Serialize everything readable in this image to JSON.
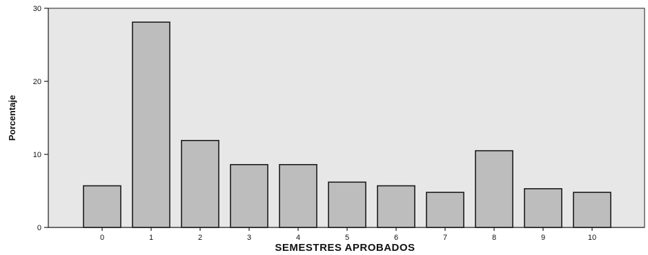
{
  "chart_data": {
    "type": "bar",
    "categories": [
      "0",
      "1",
      "2",
      "3",
      "4",
      "5",
      "6",
      "7",
      "8",
      "9",
      "10"
    ],
    "values": [
      5.7,
      28.1,
      11.9,
      8.6,
      8.6,
      6.2,
      5.7,
      4.8,
      10.5,
      5.3,
      4.8
    ],
    "title": "",
    "xlabel": "SEMESTRES APROBADOS",
    "ylabel": "Porcentaje",
    "ylim": [
      0,
      30
    ],
    "yticks": [
      0,
      10,
      20,
      30
    ],
    "grid": false,
    "colors": {
      "plot_background": "#e7e7e7",
      "bar_fill": "#bdbdbd",
      "bar_stroke": "#1a1a1a",
      "axis": "#1a1a1a"
    }
  }
}
